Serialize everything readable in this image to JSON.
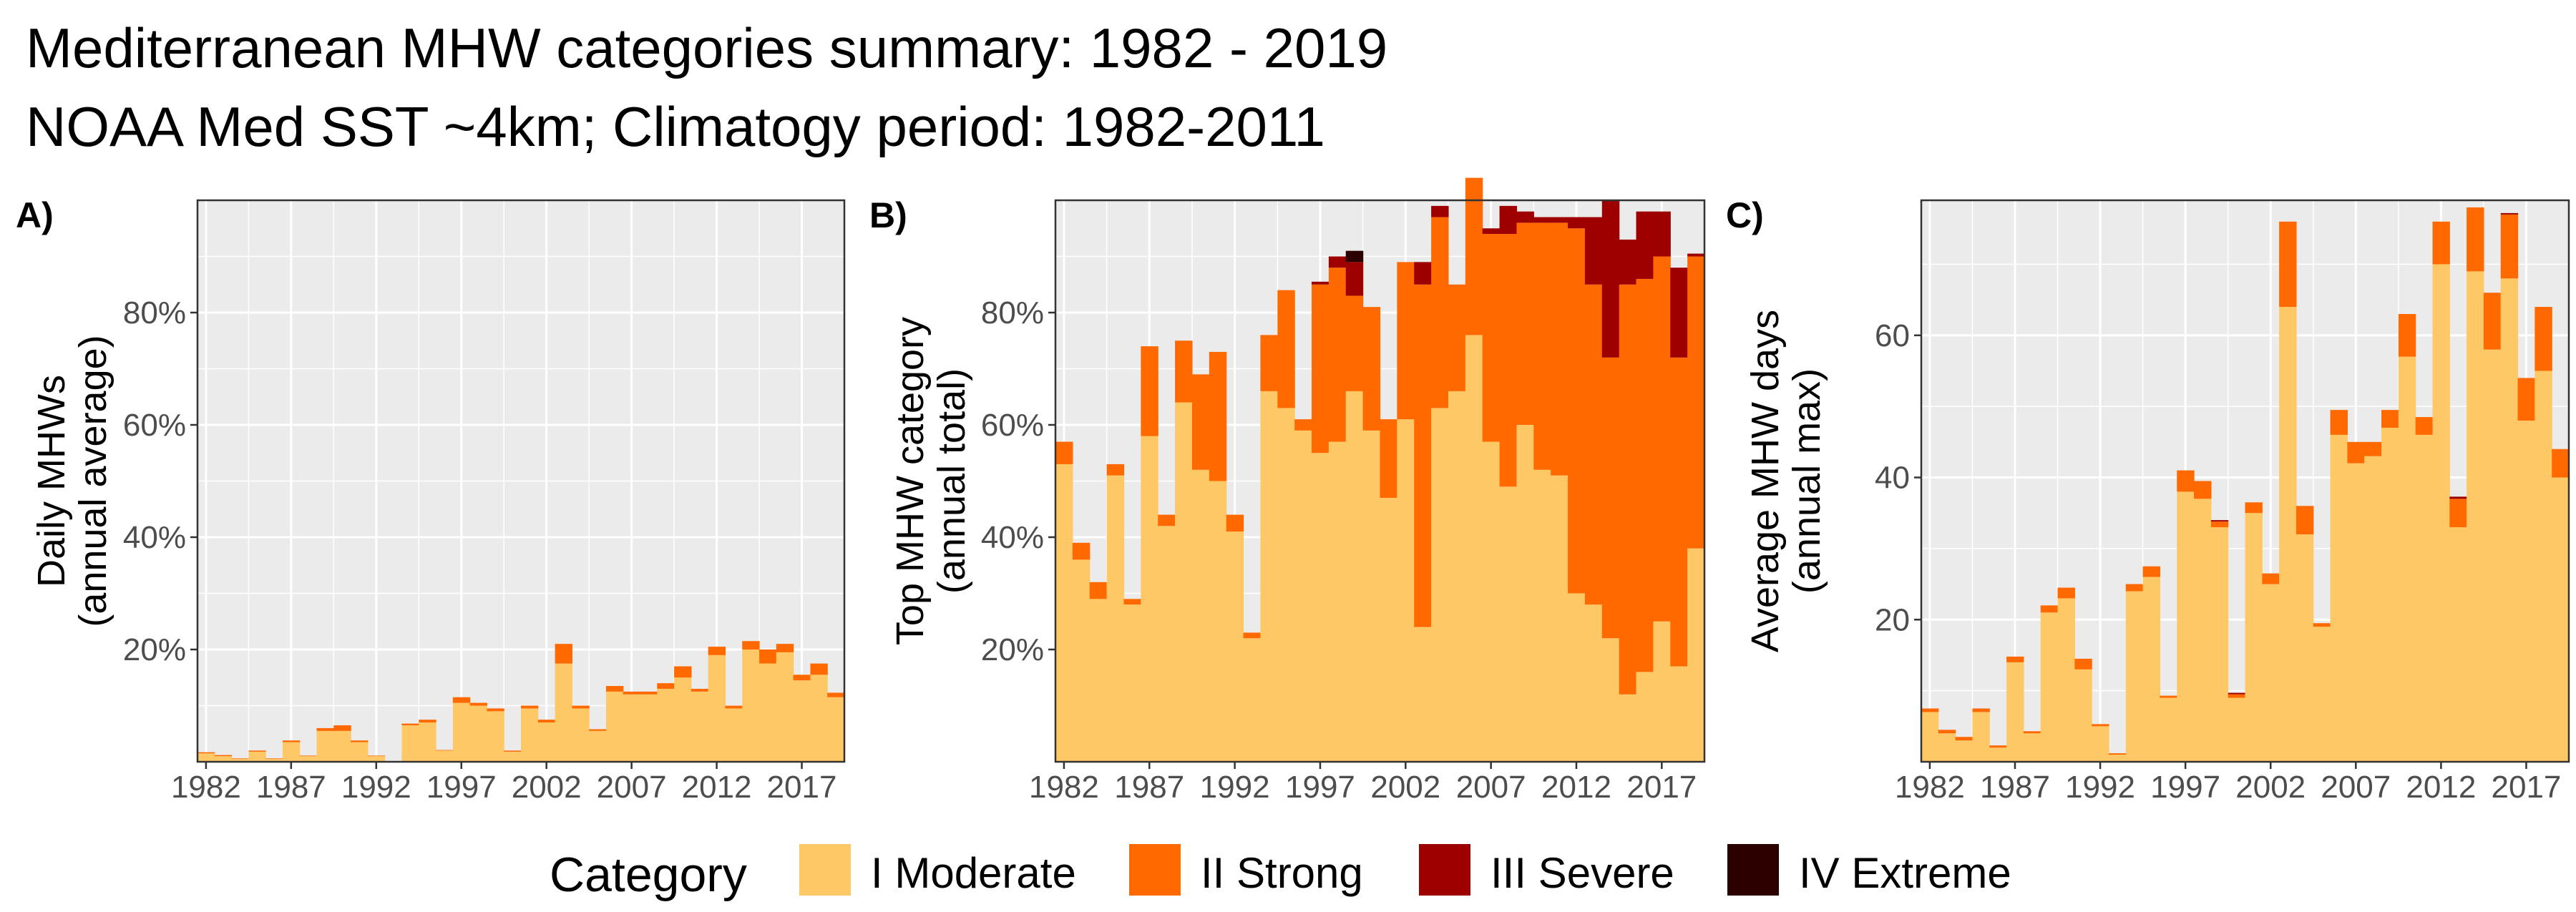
{
  "title_line1": "Mediterranean MHW categories summary: 1982 - 2019",
  "title_line2": "NOAA Med SST ~4km; Climatogy period: 1982-2011",
  "categories": [
    "I Moderate",
    "II Strong",
    "III Severe",
    "IV Extreme"
  ],
  "colors": [
    "#FFC866",
    "#FF6900",
    "#9E0000",
    "#2D0000"
  ],
  "legend": {
    "title": "Category"
  },
  "chart_data": [
    {
      "type": "bar",
      "stacked": true,
      "panel": "A)",
      "ylabel_line1": "Daily MHWs",
      "ylabel_line2": "(annual average)",
      "x": [
        1982,
        1983,
        1984,
        1985,
        1986,
        1987,
        1988,
        1989,
        1990,
        1991,
        1992,
        1993,
        1994,
        1995,
        1996,
        1997,
        1998,
        1999,
        2000,
        2001,
        2002,
        2003,
        2004,
        2005,
        2006,
        2007,
        2008,
        2009,
        2010,
        2011,
        2012,
        2013,
        2014,
        2015,
        2016,
        2017,
        2018,
        2019
      ],
      "xticks": [
        "1982",
        "1987",
        "1992",
        "1997",
        "2002",
        "2007",
        "2012",
        "2017"
      ],
      "yticks": [
        "20%",
        "40%",
        "60%",
        "80%"
      ],
      "ytick_values": [
        20,
        40,
        60,
        80
      ],
      "ylim": [
        0,
        100
      ],
      "grid": true,
      "series": [
        {
          "name": "I Moderate",
          "values": [
            1.5,
            1,
            0.5,
            1.8,
            0.5,
            3.5,
            1,
            5.5,
            5.5,
            3.5,
            1,
            0,
            6.5,
            7,
            2,
            10.5,
            10,
            9,
            1.8,
            9.5,
            7,
            17.5,
            9.5,
            5.5,
            12.5,
            12,
            12,
            13,
            15,
            12.5,
            19,
            9.5,
            20,
            17.5,
            19.5,
            14.5,
            15.5,
            11.5
          ]
        },
        {
          "name": "II Strong",
          "values": [
            0.2,
            0.2,
            0.1,
            0.2,
            0.1,
            0.3,
            0.1,
            0.5,
            1,
            0.3,
            0.1,
            0,
            0.3,
            0.5,
            0.1,
            1,
            0.5,
            0.5,
            0.2,
            0.5,
            0.5,
            3.5,
            0.5,
            0.3,
            1,
            0.5,
            0.5,
            1,
            2,
            0.5,
            1.5,
            0.5,
            1.5,
            2.5,
            1.5,
            1,
            2,
            0.8
          ]
        },
        {
          "name": "III Severe",
          "values": [
            0,
            0,
            0,
            0,
            0,
            0,
            0,
            0,
            0,
            0,
            0,
            0,
            0,
            0,
            0,
            0,
            0,
            0,
            0,
            0,
            0,
            0,
            0,
            0,
            0,
            0,
            0,
            0,
            0,
            0,
            0,
            0,
            0,
            0,
            0,
            0,
            0,
            0
          ]
        },
        {
          "name": "IV Extreme",
          "values": [
            0,
            0,
            0,
            0,
            0,
            0,
            0,
            0,
            0,
            0,
            0,
            0,
            0,
            0,
            0,
            0,
            0,
            0,
            0,
            0,
            0,
            0,
            0,
            0,
            0,
            0,
            0,
            0,
            0,
            0,
            0,
            0,
            0,
            0,
            0,
            0,
            0,
            0
          ]
        }
      ]
    },
    {
      "type": "bar",
      "stacked": true,
      "panel": "B)",
      "ylabel_line1": "Top MHW category",
      "ylabel_line2": "(annual total)",
      "x": [
        1982,
        1983,
        1984,
        1985,
        1986,
        1987,
        1988,
        1989,
        1990,
        1991,
        1992,
        1993,
        1994,
        1995,
        1996,
        1997,
        1998,
        1999,
        2000,
        2001,
        2002,
        2003,
        2004,
        2005,
        2006,
        2007,
        2008,
        2009,
        2010,
        2011,
        2012,
        2013,
        2014,
        2015,
        2016,
        2017,
        2018,
        2019
      ],
      "xticks": [
        "1982",
        "1987",
        "1992",
        "1997",
        "2002",
        "2007",
        "2012",
        "2017"
      ],
      "yticks": [
        "20%",
        "40%",
        "60%",
        "80%"
      ],
      "ytick_values": [
        20,
        40,
        60,
        80
      ],
      "ylim": [
        0,
        100
      ],
      "grid": true,
      "series": [
        {
          "name": "I Moderate",
          "values": [
            53,
            36,
            29,
            51,
            28,
            58,
            42,
            64,
            52,
            50,
            41,
            22,
            66,
            63,
            59,
            55,
            57,
            66,
            59,
            47,
            61,
            24,
            63,
            66,
            76,
            57,
            49,
            60,
            52,
            51,
            30,
            28,
            22,
            12,
            16,
            25,
            17,
            38
          ]
        },
        {
          "name": "II Strong",
          "values": [
            4,
            3,
            3,
            2,
            1,
            16,
            2,
            11,
            17,
            23,
            3,
            1,
            10,
            21,
            2,
            30,
            31,
            17,
            22,
            14,
            28,
            61,
            34,
            19,
            28,
            37,
            45,
            36,
            44,
            45,
            65,
            57,
            50,
            73,
            70,
            65,
            55,
            52
          ]
        },
        {
          "name": "III Severe",
          "values": [
            0,
            0,
            0,
            0,
            0,
            0,
            0,
            0,
            0,
            0,
            0,
            0,
            0,
            0,
            0,
            0.5,
            2,
            6,
            0,
            0,
            0,
            4,
            2,
            0,
            0,
            1,
            5,
            2,
            1,
            1,
            2,
            12,
            28,
            8,
            12,
            8,
            16,
            0.5
          ]
        },
        {
          "name": "IV Extreme",
          "values": [
            0,
            0,
            0,
            0,
            0,
            0,
            0,
            0,
            0,
            0,
            0,
            0,
            0,
            0,
            0,
            0,
            0,
            2,
            0,
            0,
            0,
            0,
            0,
            0,
            0,
            0,
            0,
            0,
            0,
            0,
            0,
            0,
            0,
            0,
            0,
            0,
            0,
            0
          ]
        }
      ]
    },
    {
      "type": "bar",
      "stacked": true,
      "panel": "C)",
      "ylabel_line1": "Average MHW days",
      "ylabel_line2": "(annual max)",
      "x": [
        1982,
        1983,
        1984,
        1985,
        1986,
        1987,
        1988,
        1989,
        1990,
        1991,
        1992,
        1993,
        1994,
        1995,
        1996,
        1997,
        1998,
        1999,
        2000,
        2001,
        2002,
        2003,
        2004,
        2005,
        2006,
        2007,
        2008,
        2009,
        2010,
        2011,
        2012,
        2013,
        2014,
        2015,
        2016,
        2017,
        2018,
        2019
      ],
      "xticks": [
        "1982",
        "1987",
        "1992",
        "1997",
        "2002",
        "2007",
        "2012",
        "2017"
      ],
      "yticks": [
        "20",
        "40",
        "60"
      ],
      "ytick_values": [
        20,
        40,
        60
      ],
      "ylim": [
        0,
        79
      ],
      "grid": true,
      "series": [
        {
          "name": "I Moderate",
          "values": [
            7,
            4,
            3,
            7,
            2,
            14,
            4,
            21,
            23,
            13,
            5,
            1,
            24,
            26,
            9,
            38,
            37,
            33,
            9,
            35,
            25,
            64,
            32,
            19,
            46,
            42,
            43,
            47,
            57,
            46,
            70,
            33,
            69,
            58,
            68,
            48,
            55,
            40
          ]
        },
        {
          "name": "II Strong",
          "values": [
            0.5,
            0.5,
            0.5,
            0.5,
            0.3,
            0.8,
            0.3,
            1,
            1.5,
            1.5,
            0.3,
            0.2,
            1,
            1.5,
            0.3,
            3,
            2.5,
            0.8,
            0.5,
            1.5,
            1.5,
            12,
            4,
            0.5,
            3.5,
            3,
            2,
            2.5,
            6,
            2.5,
            6,
            4,
            9,
            8,
            9,
            6,
            9,
            4
          ]
        },
        {
          "name": "III Severe",
          "values": [
            0,
            0,
            0,
            0,
            0,
            0,
            0,
            0,
            0,
            0,
            0,
            0,
            0,
            0,
            0,
            0,
            0,
            0.2,
            0.2,
            0,
            0,
            0,
            0,
            0,
            0,
            0,
            0,
            0,
            0,
            0,
            0,
            0.3,
            0,
            0,
            0.2,
            0,
            0,
            0
          ]
        },
        {
          "name": "IV Extreme",
          "values": [
            0,
            0,
            0,
            0,
            0,
            0,
            0,
            0,
            0,
            0,
            0,
            0,
            0,
            0,
            0,
            0,
            0,
            0,
            0,
            0,
            0,
            0,
            0,
            0,
            0,
            0,
            0,
            0,
            0,
            0,
            0,
            0,
            0,
            0,
            0,
            0,
            0,
            0
          ]
        }
      ]
    }
  ]
}
